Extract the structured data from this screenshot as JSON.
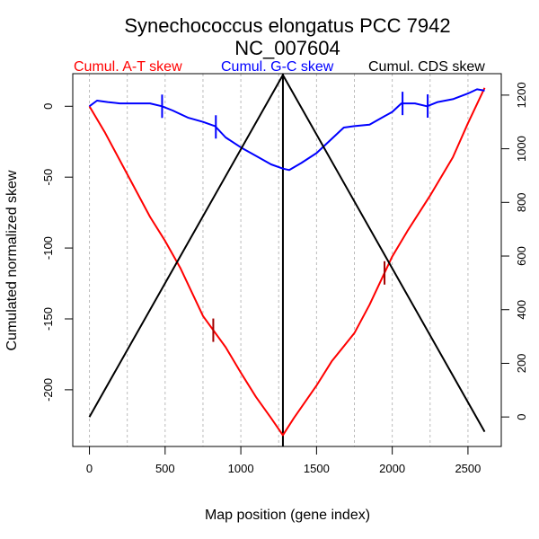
{
  "chart_data": {
    "type": "line",
    "title": "Synechococcus elongatus PCC 7942",
    "subtitle": "NC_007604",
    "xlabel": "Map position (gene index)",
    "ylabel": "Cumulated normalized skew",
    "y2label": "",
    "xlim": [
      -110,
      2720
    ],
    "ylim": [
      -240,
      23
    ],
    "y2lim": [
      -110,
      1280
    ],
    "x_ticks": [
      0,
      500,
      1000,
      1500,
      2000,
      2500
    ],
    "x_tick_labels": [
      "0",
      "500",
      "1000",
      "1500",
      "2000",
      "2500"
    ],
    "x_minor_grid": [
      0,
      250,
      500,
      750,
      1000,
      1250,
      1500,
      1750,
      2000,
      2250,
      2500
    ],
    "y_ticks": [
      0,
      -50,
      -100,
      -150,
      -200
    ],
    "y_tick_labels": [
      "0",
      "-50",
      "-100",
      "-150",
      "-200"
    ],
    "y2_ticks": [
      0,
      200,
      400,
      600,
      800,
      1000,
      1200
    ],
    "y2_tick_labels": [
      "0",
      "200",
      "400",
      "600",
      "800",
      "1000",
      "1200"
    ],
    "grid": "vertical dotted",
    "legend_placement": "top",
    "vertical_marker_x": 1278,
    "series": [
      {
        "name": "Cumul. A-T skew",
        "color": "#ff0000",
        "axis": "left",
        "x": [
          0,
          100,
          250,
          400,
          500,
          600,
          750,
          900,
          1000,
          1100,
          1200,
          1278,
          1350,
          1500,
          1600,
          1750,
          1850,
          2000,
          2100,
          2250,
          2400,
          2500,
          2610
        ],
        "y": [
          0,
          -18,
          -48,
          -78,
          -95,
          -114,
          -148,
          -170,
          -188,
          -205,
          -220,
          -232,
          -220,
          -197,
          -180,
          -160,
          -140,
          -106,
          -88,
          -63,
          -36,
          -12,
          13
        ],
        "ticks_x": [
          818,
          1949
        ],
        "tick_color": "#a00000"
      },
      {
        "name": "Cumul. G-C skew",
        "color": "#0000ff",
        "axis": "left",
        "x": [
          0,
          50,
          120,
          200,
          300,
          400,
          480,
          550,
          650,
          750,
          830,
          900,
          1000,
          1100,
          1200,
          1278,
          1320,
          1400,
          1500,
          1600,
          1680,
          1750,
          1850,
          1950,
          2000,
          2060,
          2150,
          2230,
          2300,
          2400,
          2500,
          2560,
          2610
        ],
        "y": [
          0,
          4,
          3,
          2,
          2,
          2,
          0,
          -3,
          -8,
          -11,
          -14,
          -22,
          -29,
          -35,
          -41,
          -44,
          -45,
          -40,
          -33,
          -23,
          -15,
          -14,
          -13,
          -7,
          -4,
          2,
          2,
          0,
          3,
          5,
          9,
          12,
          11
        ],
        "ticks_x": [
          480,
          835,
          2068,
          2234
        ],
        "tick_color": "#0000ff"
      },
      {
        "name": "Cumul. CDS skew",
        "color": "#000000",
        "axis": "right",
        "x": [
          0,
          1278,
          2610
        ],
        "y": [
          0,
          1275,
          -55
        ]
      }
    ]
  }
}
